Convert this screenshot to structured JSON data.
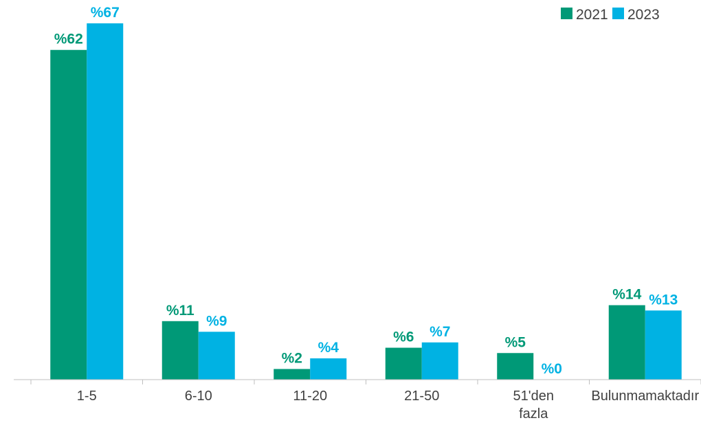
{
  "chart_data": {
    "type": "bar",
    "categories": [
      [
        "1-5"
      ],
      [
        "6-10"
      ],
      [
        "11-20"
      ],
      [
        "21-50"
      ],
      [
        "51'den",
        "fazla"
      ],
      [
        "Bulunmamaktadır"
      ]
    ],
    "series": [
      {
        "name": "2021",
        "color": "#009977",
        "values": [
          62,
          11,
          2,
          6,
          5,
          14
        ],
        "labels": [
          "%62",
          "%11",
          "%2",
          "%6",
          "%5",
          "%14"
        ]
      },
      {
        "name": "2023",
        "color": "#00b2e3",
        "values": [
          67,
          9,
          4,
          7,
          0,
          13
        ],
        "labels": [
          "%67",
          "%9",
          "%4",
          "%7",
          "%0",
          "%13"
        ]
      }
    ],
    "ylim": [
      0,
      67
    ],
    "grid": false,
    "legend_position": "top-right"
  }
}
